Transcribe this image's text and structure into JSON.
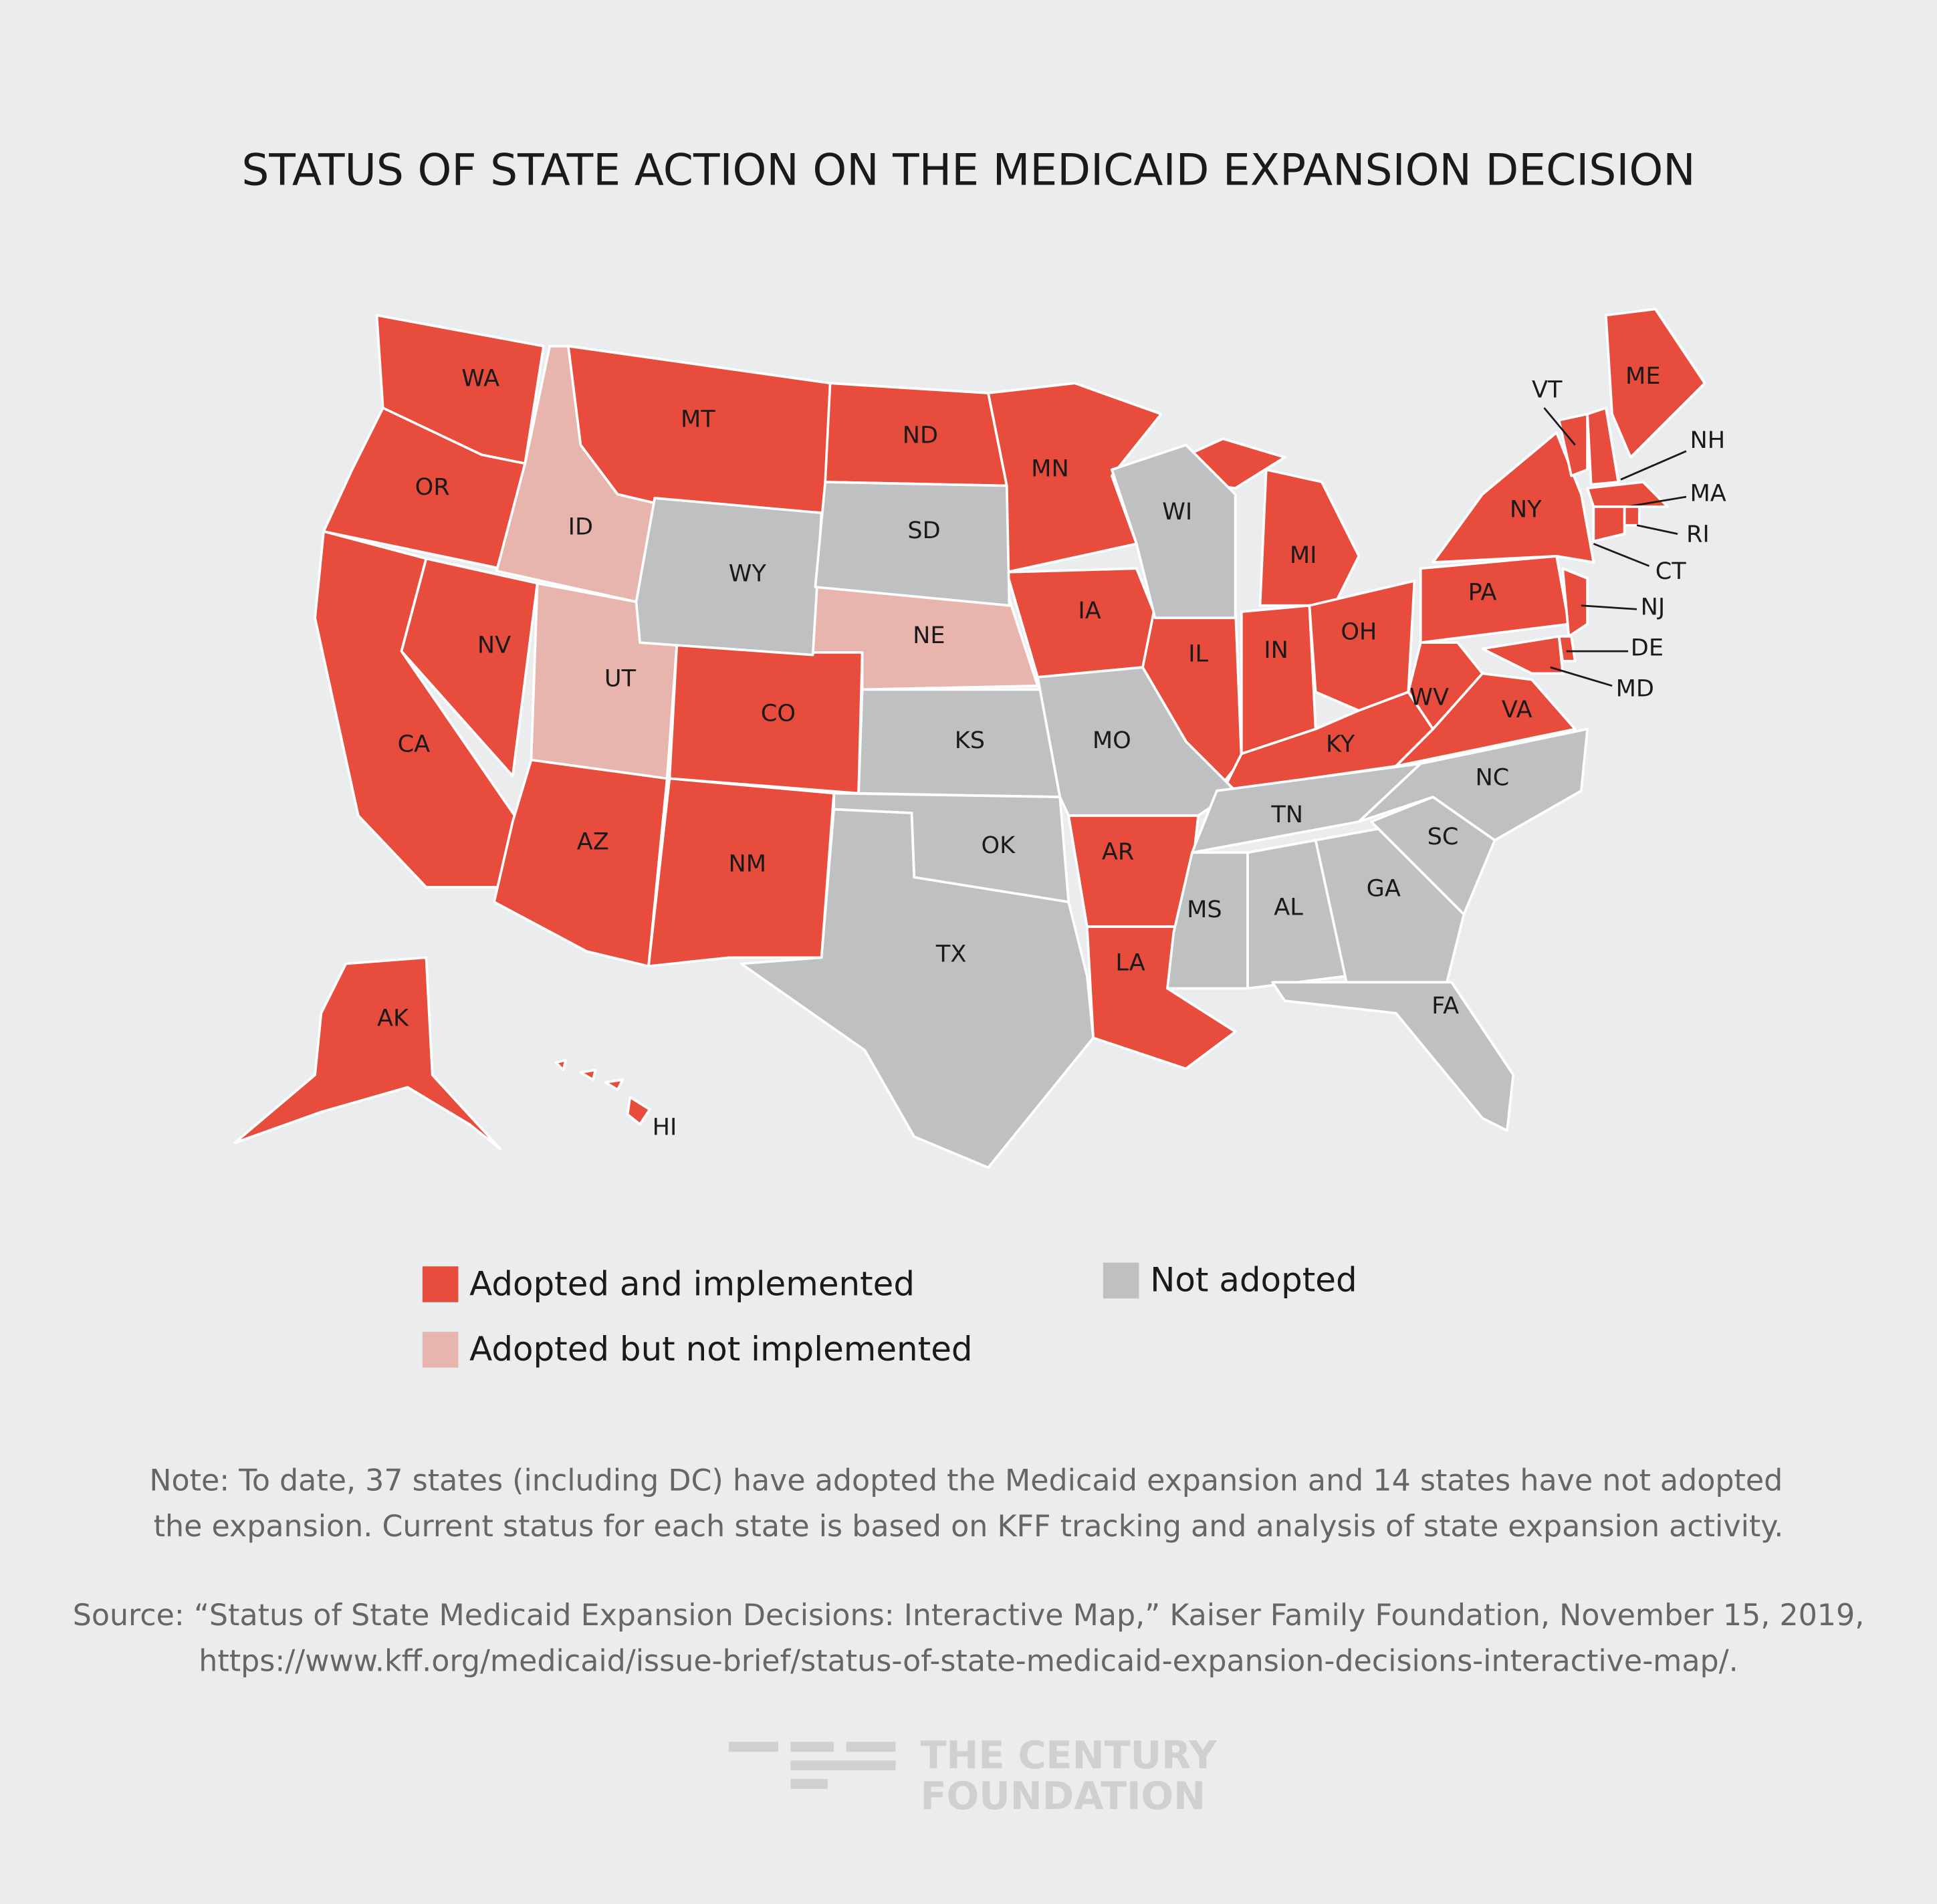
{
  "title": "STATUS OF STATE ACTION ON THE MEDICAID EXPANSION DECISION",
  "groups": [
    {
      "label": "Adopted and implemented",
      "color": "#e84c3d",
      "states": [
        "WA",
        "OR",
        "CA",
        "NV",
        "MT",
        "AZ",
        "CO",
        "NM",
        "ND",
        "MN",
        "IA",
        "AR",
        "LA",
        "IL",
        "MI",
        "IN",
        "OH",
        "KY",
        "VA",
        "WV",
        "PA",
        "NY",
        "VT",
        "NH",
        "ME",
        "MA",
        "RI",
        "CT",
        "NJ",
        "DE",
        "MD",
        "HI",
        "AK"
      ]
    },
    {
      "label": "Adopted but not implemented",
      "color": "#e8b4ae",
      "states": [
        "ID",
        "UT",
        "NE"
      ]
    },
    {
      "label": "Not adopted",
      "color": "#bfc0c2",
      "states": [
        "WY",
        "SD",
        "KS",
        "OK",
        "TX",
        "MO",
        "WI",
        "TN",
        "MS",
        "AL",
        "GA",
        "FA",
        "SC",
        "NC"
      ]
    }
  ],
  "note": [
    "Note: To date, 37 states (including DC) have adopted the Medicaid expansion and 14 states have not adopted",
    "the expansion. Current status for each state is based on KFF tracking and analysis of state expansion activity."
  ],
  "source": [
    "Source: “Status of State Medicaid Expansion Decisions: Interactive Map,” Kaiser Family Foundation, November 15, 2019,",
    "https://www.kff.org/medicaid/issue-brief/status-of-state-medicaid-expansion-decisions-interactive-map/."
  ],
  "logo": [
    "THE CENTURY",
    "FOUNDATION"
  ]
}
